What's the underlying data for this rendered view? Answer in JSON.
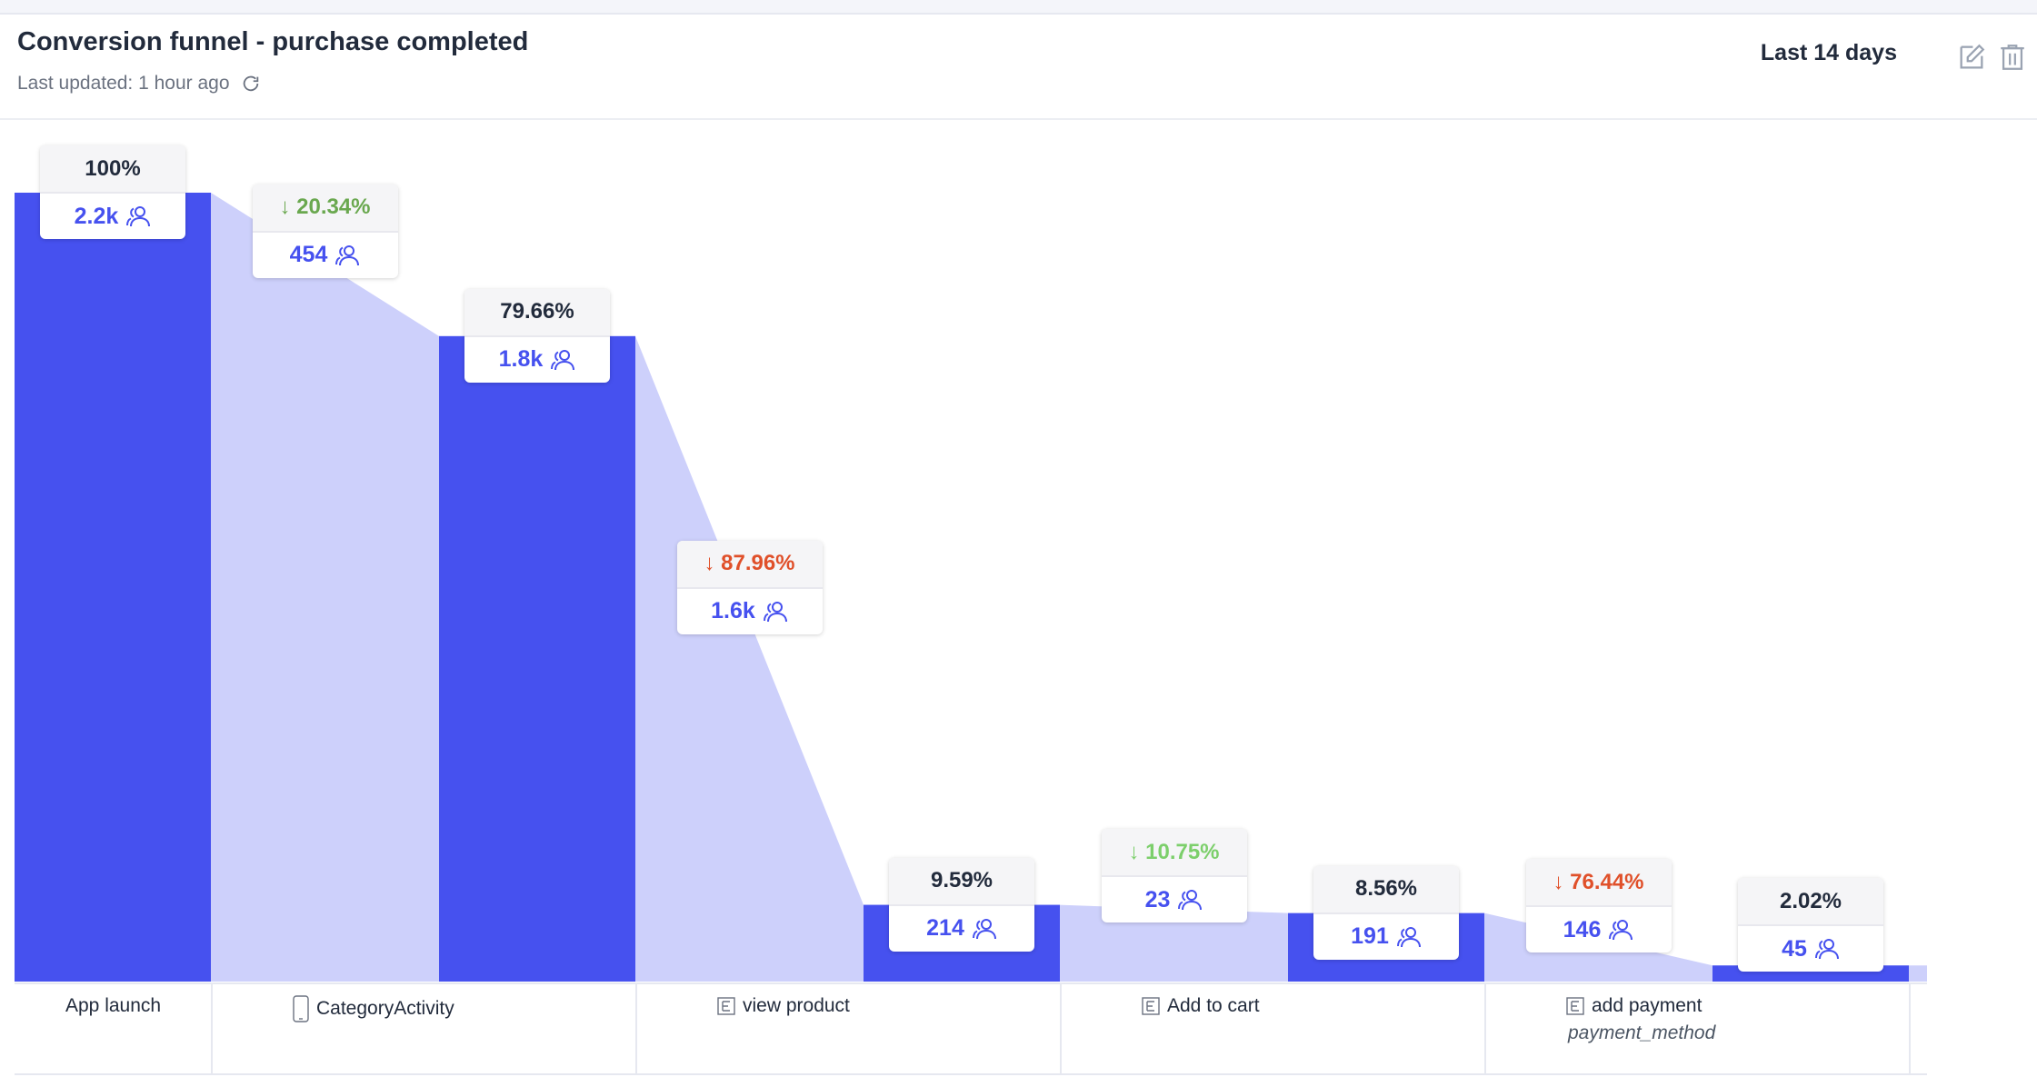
{
  "header": {
    "title": "Conversion funnel - purchase completed",
    "updated": "Last updated: 1 hour ago",
    "range": "Last 14 days"
  },
  "colors": {
    "bar": "#4651ef",
    "flow": "#cdd0fb",
    "drop_green": "#6aa84f",
    "drop_red": "#e0502a"
  },
  "chart_data": {
    "type": "bar",
    "title": "Conversion funnel - purchase completed",
    "unit": "users",
    "ylim": [
      0,
      2200
    ],
    "steps": [
      {
        "name": "App launch",
        "icon": "",
        "sub": "",
        "value": 2200,
        "count_label": "2.2k",
        "percent_label": "100%",
        "drop_label": "↓ 20.34%",
        "drop_count": "454",
        "drop_color": "green"
      },
      {
        "name": "CategoryActivity",
        "icon": "phone-icon",
        "sub": "",
        "value": 1800,
        "count_label": "1.8k",
        "percent_label": "79.66%",
        "drop_label": "↓ 87.96%",
        "drop_count": "1.6k",
        "drop_color": "red"
      },
      {
        "name": "view product",
        "icon": "event-icon",
        "sub": "",
        "value": 214,
        "count_label": "214",
        "percent_label": "9.59%",
        "drop_label": "↓ 10.75%",
        "drop_count": "23",
        "drop_color": "lime"
      },
      {
        "name": "Add to cart",
        "icon": "event-icon",
        "sub": "",
        "value": 191,
        "count_label": "191",
        "percent_label": "8.56%",
        "drop_label": "↓ 76.44%",
        "drop_count": "146",
        "drop_color": "red"
      },
      {
        "name": "add payment",
        "icon": "event-icon",
        "sub": "payment_method",
        "value": 45,
        "count_label": "45",
        "percent_label": "2.02%",
        "drop_label": "",
        "drop_count": "",
        "drop_color": ""
      }
    ]
  }
}
